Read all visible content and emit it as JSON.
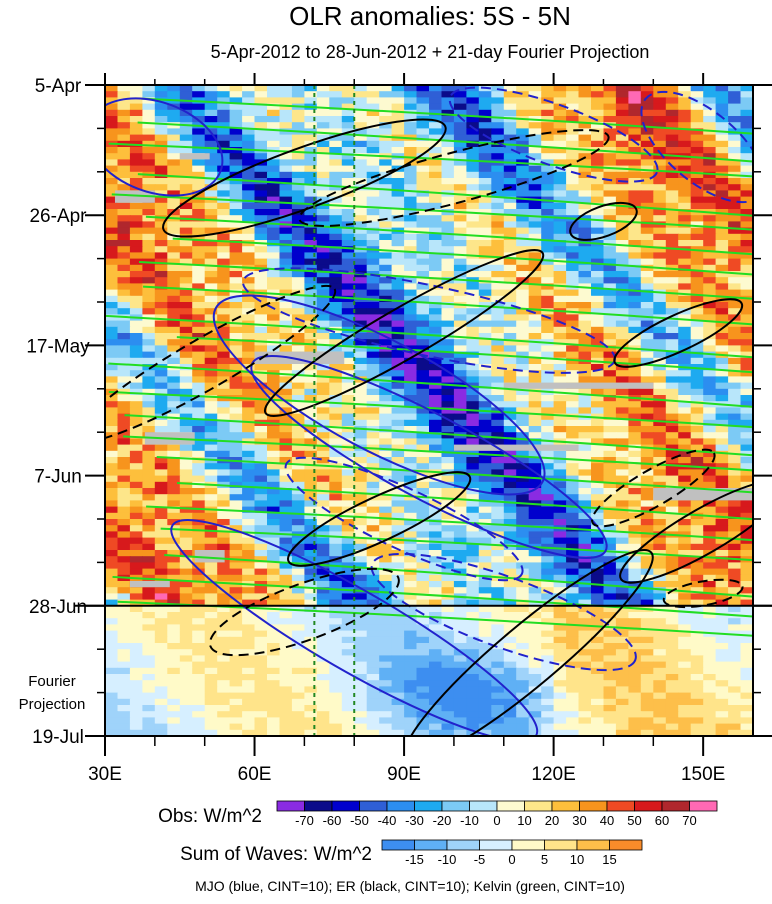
{
  "chart_data": {
    "type": "heatmap",
    "title": "OLR anomalies: 5S - 5N",
    "subtitle": "5-Apr-2012 to 28-Jun-2012 + 21-day Fourier Projection",
    "x_axis": {
      "range_lon": [
        30,
        160
      ],
      "ticks": [
        {
          "value": 30,
          "label": "30E"
        },
        {
          "value": 60,
          "label": "60E"
        },
        {
          "value": 90,
          "label": "90E"
        },
        {
          "value": 120,
          "label": "120E"
        },
        {
          "value": 150,
          "label": "150E"
        }
      ]
    },
    "y_axis": {
      "reversed": true,
      "range_days_from_start": [
        0,
        105
      ],
      "ticks": [
        {
          "value": 0,
          "label": "5-Apr"
        },
        {
          "value": 21,
          "label": "26-Apr"
        },
        {
          "value": 42,
          "label": "17-May"
        },
        {
          "value": 63,
          "label": "7-Jun"
        },
        {
          "value": 84,
          "label": "28-Jun"
        },
        {
          "value": 105,
          "label": "19-Jul"
        }
      ],
      "projection_label_line1": "Fourier",
      "projection_label_line2": "Projection"
    },
    "projection_boundary_day": 84,
    "dashed_lines_lon": [
      72,
      80
    ],
    "legend_obs": {
      "title": "Obs: W/m^2",
      "levels": [
        -70,
        -60,
        -50,
        -40,
        -30,
        -20,
        -10,
        0,
        10,
        20,
        30,
        40,
        50,
        60,
        70
      ],
      "labels": [
        "-70",
        "-60",
        "-50",
        "-40",
        "-30",
        "-20",
        "-10",
        "0",
        "10",
        "20",
        "30",
        "40",
        "50",
        "60",
        "70"
      ],
      "colors": [
        "#8a2be2",
        "#0b0b8a",
        "#0000cd",
        "#2f5fd6",
        "#2c8ef0",
        "#1eaaf0",
        "#7ccaf5",
        "#b8e6fa",
        "#fdfad0",
        "#fde68a",
        "#fdbf3c",
        "#f7941d",
        "#ef4a24",
        "#d7191c",
        "#b0272d",
        "#ff69b4"
      ]
    },
    "legend_waves": {
      "title": "Sum of Waves: W/m^2",
      "levels": [
        -15,
        -10,
        -5,
        0,
        5,
        10,
        15
      ],
      "labels": [
        "-15",
        "-10",
        "-5",
        "0",
        "5",
        "10",
        "15"
      ],
      "colors": [
        "#3d8ef0",
        "#5fb0f5",
        "#9fd3fa",
        "#d6efff",
        "#fffac8",
        "#ffe48a",
        "#fdbf4a",
        "#f98c2a"
      ]
    },
    "contours_caption": "MJO (blue, CINT=10); ER (black, CINT=10); Kelvin (green, CINT=10)",
    "series_colors": {
      "MJO": "#2222cc",
      "ER": "#000000",
      "Kelvin": "#22dd22",
      "divider": "#228822"
    }
  }
}
